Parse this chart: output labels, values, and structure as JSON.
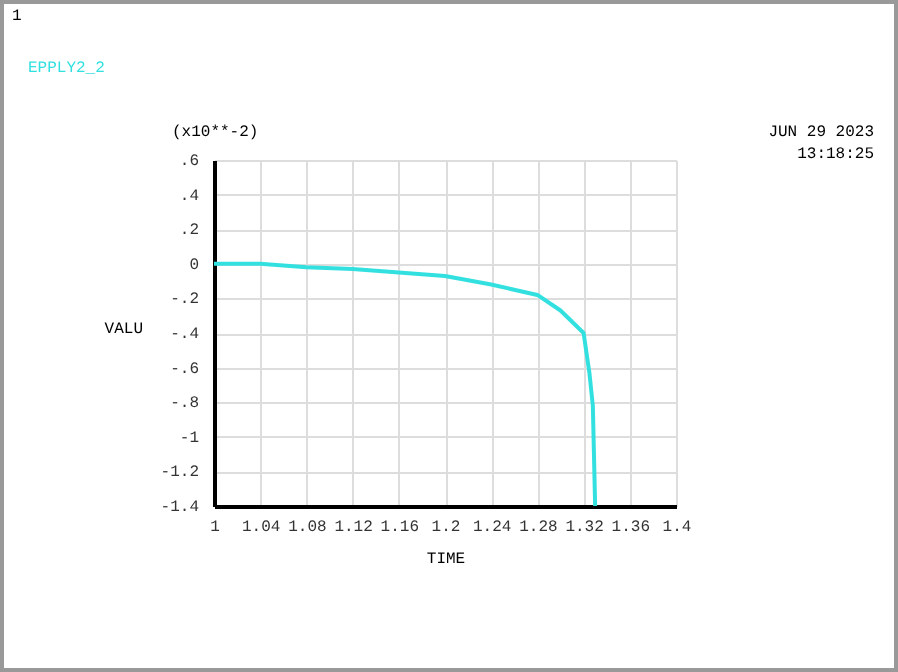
{
  "chart_data": {
    "type": "line",
    "xlabel": "TIME",
    "ylabel": "VALU",
    "annotations": [
      "1",
      "(x10**-2)",
      "JUN 29 2023",
      "13:18:25"
    ],
    "x": [
      1,
      1.04,
      1.08,
      1.12,
      1.16,
      1.2,
      1.24,
      1.28,
      1.3,
      1.32,
      1.325,
      1.328,
      1.33
    ],
    "series": [
      {
        "name": "EPPLY2_2",
        "color": "#33e0e0",
        "values": [
          0,
          0,
          -0.02,
          -0.03,
          -0.05,
          -0.07,
          -0.12,
          -0.18,
          -0.27,
          -0.4,
          -0.63,
          -0.82,
          -1.4
        ]
      }
    ],
    "xlim": [
      1,
      1.4
    ],
    "ylim": [
      -1.4,
      0.6
    ],
    "xticks": [
      1,
      1.04,
      1.08,
      1.12,
      1.16,
      1.2,
      1.24,
      1.28,
      1.32,
      1.36,
      1.4
    ],
    "yticks": [
      {
        "value": -1.4,
        "label": "-1.4"
      },
      {
        "value": -1.2,
        "label": "-1.2"
      },
      -1,
      {
        "value": -0.8,
        "label": "-.8"
      },
      {
        "value": -0.6,
        "label": "-.6"
      },
      {
        "value": -0.4,
        "label": "-.4"
      },
      {
        "value": -0.2,
        "label": "-.2"
      },
      0,
      {
        "value": 0.2,
        "label": ".2"
      },
      {
        "value": 0.4,
        "label": ".4"
      },
      {
        "value": 0.6,
        "label": ".6"
      }
    ],
    "grid": true
  }
}
